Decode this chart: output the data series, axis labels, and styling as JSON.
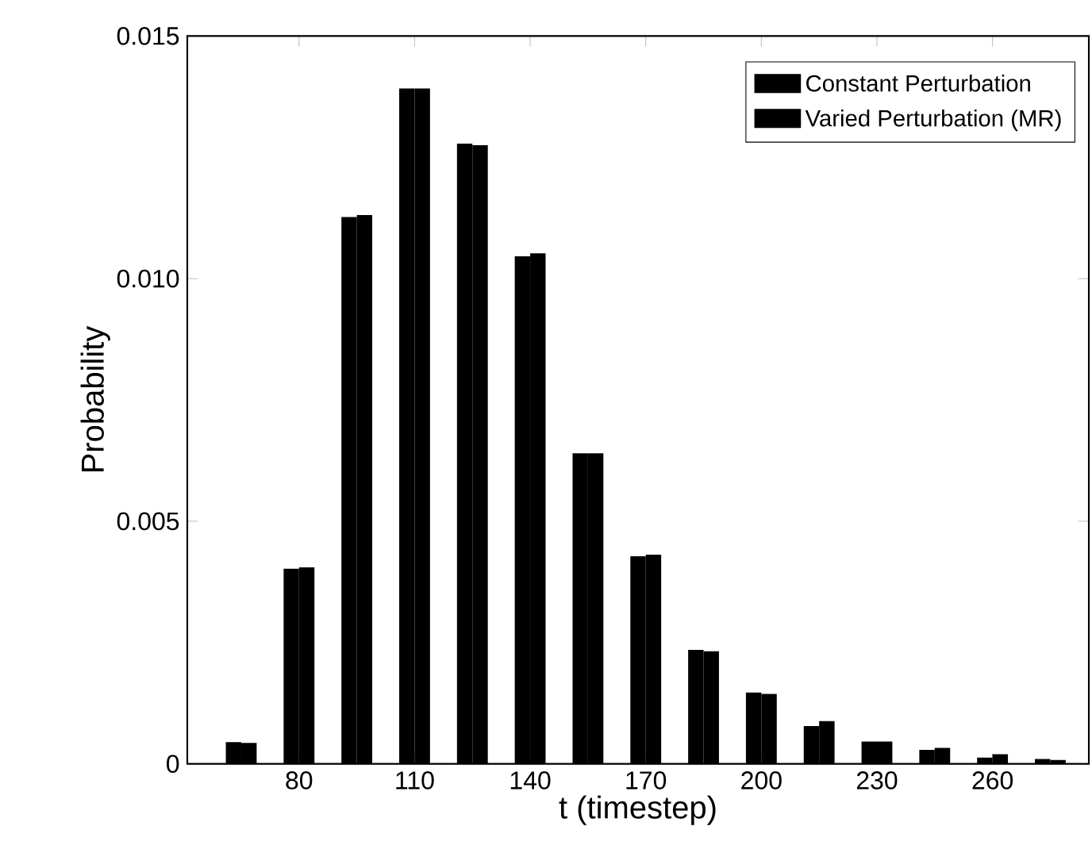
{
  "chart_data": {
    "type": "bar",
    "xlabel": "t (timestep)",
    "ylabel": "Probability",
    "x": [
      65,
      80,
      95,
      110,
      125,
      140,
      155,
      170,
      185,
      200,
      215,
      230,
      245,
      260,
      275
    ],
    "series": [
      {
        "name": "Constant Perturbation",
        "color": "#000000",
        "values": [
          0.00045,
          0.00402,
          0.01127,
          0.01392,
          0.01278,
          0.01046,
          0.0064,
          0.00428,
          0.00235,
          0.00147,
          0.00078,
          0.00046,
          0.00029,
          0.00013,
          0.0001
        ]
      },
      {
        "name": "Varied Perturbation (MR)",
        "color": "#000000",
        "values": [
          0.00043,
          0.00405,
          0.01131,
          0.01392,
          0.01275,
          0.01052,
          0.0064,
          0.00431,
          0.00232,
          0.00144,
          0.00088,
          0.00046,
          0.00033,
          0.0002,
          8e-05
        ]
      }
    ],
    "xlim": [
      51,
      285
    ],
    "xticks": [
      80,
      110,
      140,
      170,
      200,
      230,
      260
    ],
    "ylim": [
      0,
      0.015
    ],
    "yticks": [
      0,
      0.005,
      {
        "value": 0.01,
        "label": "0.010"
      },
      0.015
    ],
    "legend": "top right"
  }
}
